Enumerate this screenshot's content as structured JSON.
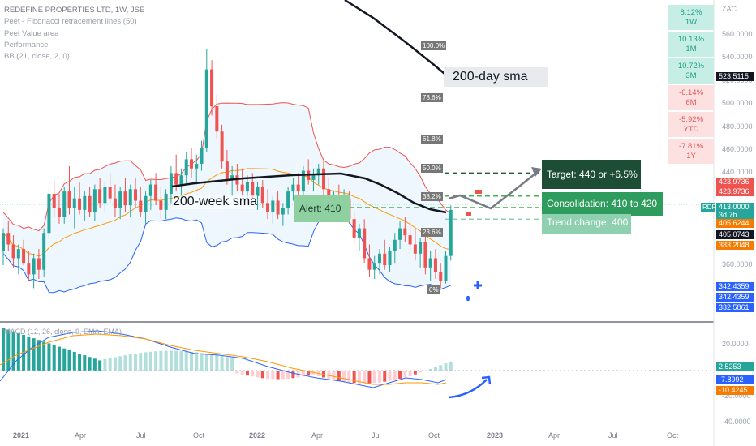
{
  "legend": {
    "title": "REDEFINE PROPERTIES LTD, 1W, JSE",
    "lines": [
      "Peet - Fibonacci retracement lines (50)",
      "Peet Value area",
      "Performance",
      "BB (21, close, 2, 0)"
    ]
  },
  "performance": [
    {
      "value": "8.12%",
      "period": "1W",
      "sign": "pos"
    },
    {
      "value": "10.13%",
      "period": "1M",
      "sign": "pos"
    },
    {
      "value": "10.72%",
      "period": "3M",
      "sign": "pos"
    },
    {
      "value": "-6.14%",
      "period": "6M",
      "sign": "neg"
    },
    {
      "value": "-5.92%",
      "period": "YTD",
      "sign": "neg"
    },
    {
      "value": "-7.81%",
      "period": "1Y",
      "sign": "neg"
    }
  ],
  "chart_data": {
    "type": "candlestick",
    "currency": "ZAC",
    "y_ticks": [
      "560.0000",
      "540.0000",
      "520.0000",
      "500.0000",
      "480.0000",
      "460.0000",
      "440.0000",
      "360.0000"
    ],
    "ylim": [
      300,
      575
    ],
    "x_ticks": [
      "2021",
      "Apr",
      "Jul",
      "Oct",
      "2022",
      "Apr",
      "Jul",
      "Oct",
      "2023",
      "Apr",
      "Jul",
      "Oct"
    ],
    "candles": [
      [
        372,
        392,
        360,
        388
      ],
      [
        388,
        398,
        372,
        378
      ],
      [
        378,
        386,
        358,
        366
      ],
      [
        366,
        378,
        352,
        374
      ],
      [
        374,
        382,
        360,
        362
      ],
      [
        362,
        372,
        346,
        352
      ],
      [
        352,
        370,
        340,
        366
      ],
      [
        366,
        374,
        348,
        356
      ],
      [
        356,
        392,
        350,
        388
      ],
      [
        388,
        428,
        382,
        422
      ],
      [
        422,
        434,
        402,
        410
      ],
      [
        410,
        422,
        396,
        402
      ],
      [
        402,
        428,
        396,
        424
      ],
      [
        424,
        446,
        404,
        410
      ],
      [
        410,
        428,
        392,
        418
      ],
      [
        418,
        432,
        404,
        408
      ],
      [
        408,
        424,
        398,
        420
      ],
      [
        420,
        428,
        402,
        406
      ],
      [
        406,
        430,
        398,
        426
      ],
      [
        426,
        436,
        410,
        414
      ],
      [
        414,
        432,
        406,
        428
      ],
      [
        428,
        440,
        414,
        418
      ],
      [
        418,
        430,
        402,
        410
      ],
      [
        410,
        428,
        400,
        424
      ],
      [
        424,
        436,
        406,
        412
      ],
      [
        412,
        430,
        402,
        426
      ],
      [
        426,
        436,
        410,
        416
      ],
      [
        416,
        428,
        402,
        406
      ],
      [
        406,
        424,
        396,
        420
      ],
      [
        420,
        434,
        408,
        430
      ],
      [
        430,
        440,
        412,
        416
      ],
      [
        416,
        428,
        400,
        408
      ],
      [
        408,
        426,
        400,
        422
      ],
      [
        422,
        446,
        414,
        440
      ],
      [
        440,
        456,
        424,
        430
      ],
      [
        430,
        444,
        420,
        438
      ],
      [
        438,
        458,
        430,
        452
      ],
      [
        452,
        462,
        436,
        444
      ],
      [
        444,
        456,
        430,
        448
      ],
      [
        448,
        468,
        442,
        462
      ],
      [
        462,
        548,
        458,
        530
      ],
      [
        530,
        538,
        490,
        498
      ],
      [
        498,
        508,
        470,
        476
      ],
      [
        476,
        482,
        444,
        450
      ],
      [
        450,
        460,
        430,
        434
      ],
      [
        434,
        446,
        420,
        438
      ],
      [
        438,
        448,
        424,
        430
      ],
      [
        430,
        444,
        420,
        424
      ],
      [
        424,
        438,
        414,
        432
      ],
      [
        432,
        440,
        418,
        420
      ],
      [
        420,
        432,
        408,
        428
      ],
      [
        428,
        434,
        410,
        414
      ],
      [
        414,
        426,
        400,
        406
      ],
      [
        406,
        420,
        396,
        416
      ],
      [
        416,
        424,
        400,
        404
      ],
      [
        404,
        414,
        394,
        410
      ],
      [
        410,
        428,
        404,
        424
      ],
      [
        424,
        436,
        416,
        430
      ],
      [
        430,
        440,
        420,
        424
      ],
      [
        424,
        446,
        420,
        442
      ],
      [
        442,
        452,
        430,
        434
      ],
      [
        434,
        444,
        424,
        438
      ],
      [
        438,
        448,
        430,
        444
      ],
      [
        444,
        450,
        420,
        426
      ],
      [
        426,
        436,
        404,
        410
      ],
      [
        410,
        424,
        402,
        420
      ],
      [
        420,
        430,
        408,
        414
      ],
      [
        414,
        426,
        404,
        418
      ],
      [
        418,
        424,
        396,
        400
      ],
      [
        400,
        406,
        378,
        384
      ],
      [
        384,
        396,
        372,
        392
      ],
      [
        392,
        400,
        362,
        366
      ],
      [
        366,
        378,
        350,
        356
      ],
      [
        356,
        368,
        348,
        362
      ],
      [
        362,
        374,
        352,
        370
      ],
      [
        370,
        382,
        356,
        360
      ],
      [
        360,
        376,
        354,
        372
      ],
      [
        372,
        388,
        362,
        382
      ],
      [
        382,
        398,
        374,
        392
      ],
      [
        392,
        402,
        380,
        386
      ],
      [
        386,
        398,
        372,
        378
      ],
      [
        378,
        392,
        364,
        370
      ],
      [
        370,
        384,
        358,
        380
      ],
      [
        380,
        390,
        352,
        358
      ],
      [
        358,
        372,
        346,
        366
      ],
      [
        366,
        374,
        348,
        354
      ],
      [
        354,
        362,
        340,
        346
      ],
      [
        346,
        372,
        344,
        368
      ],
      [
        368,
        412,
        364,
        408
      ]
    ],
    "annotations": [
      "200-day sma",
      "200-week sma",
      "Alert: 410",
      "Target: 440 or +6.5%",
      "Consolidation: 410 to 420",
      "Trend change: 400"
    ],
    "fib_levels": [
      {
        "label": "100.0%",
        "price": 550
      },
      {
        "label": "78.6%",
        "price": 505
      },
      {
        "label": "61.8%",
        "price": 469
      },
      {
        "label": "50.0%",
        "price": 444
      },
      {
        "label": "38.2%",
        "price": 419
      },
      {
        "label": "23.6%",
        "price": 388
      },
      {
        "label": "0%",
        "price": 338
      }
    ],
    "price_tags": [
      {
        "text": "523.5115",
        "color": "#131722"
      },
      {
        "text": "423.9736",
        "color": "#ef5350"
      },
      {
        "text": "423.9736",
        "color": "#ef5350"
      },
      {
        "text": "413.0000",
        "color": "#26a69a"
      },
      {
        "text": "3d 7h",
        "color": "#26a69a"
      },
      {
        "text": "405.6244",
        "color": "#f57c00"
      },
      {
        "text": "405.0743",
        "color": "#131722"
      },
      {
        "text": "383.2048",
        "color": "#f57c00"
      },
      {
        "text": "342.4359",
        "color": "#2962ff"
      },
      {
        "text": "342.4359",
        "color": "#2962ff"
      },
      {
        "text": "332.5861",
        "color": "#2962ff"
      }
    ],
    "symbol_tag": "RDF",
    "macd": {
      "legend": "MACD (12, 26, close, 9, EMA, EMA)",
      "y_ticks": [
        "20.0000",
        "-20.0000",
        "-40.0000"
      ],
      "tags": [
        {
          "text": "2.5253",
          "color": "#26a69a"
        },
        {
          "text": "-7.8992",
          "color": "#2962ff"
        },
        {
          "text": "-10.4245",
          "color": "#f57c00"
        }
      ]
    }
  }
}
